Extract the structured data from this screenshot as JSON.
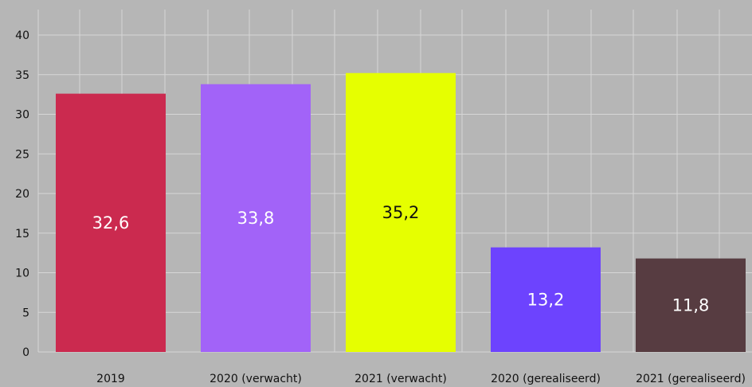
{
  "chart_data": {
    "type": "bar",
    "categories": [
      "2019",
      "2020 (verwacht)",
      "2021 (verwacht)",
      "2020 (gerealiseerd)",
      "2021 (gerealiseerd)"
    ],
    "values": [
      32.6,
      33.8,
      35.2,
      13.2,
      11.8
    ],
    "value_labels": [
      "32,6",
      "33,8",
      "35,2",
      "13,2",
      "11,8"
    ],
    "bar_colors": [
      "#cb2a4f",
      "#a263f8",
      "#e6ff00",
      "#6d43fe",
      "#573c41"
    ],
    "label_colors": [
      "#ffffff",
      "#ffffff",
      "#111111",
      "#ffffff",
      "#ffffff"
    ],
    "yticks": [
      "0",
      "5",
      "10",
      "15",
      "20",
      "25",
      "30",
      "35",
      "40"
    ],
    "ylim": [
      0,
      40
    ],
    "grid": true,
    "title": "",
    "xlabel": "",
    "ylabel": ""
  },
  "colors": {
    "background": "#b6b6b6",
    "grid": "#d6d6d6",
    "axis_text": "#111111"
  }
}
